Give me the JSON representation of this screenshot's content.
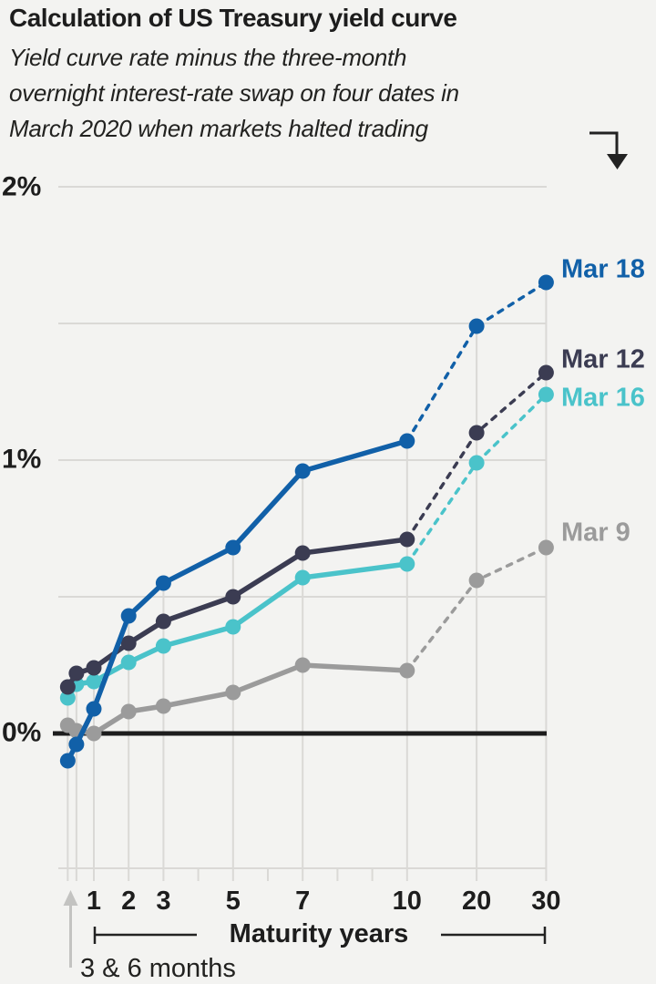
{
  "header": {
    "title": "Calculation of US Treasury yield curve",
    "subtitle_lines": [
      "Yield curve rate minus the three-month",
      "overnight interest-rate swap on four dates in",
      "March 2020 when markets halted trading"
    ]
  },
  "chart_data": {
    "type": "line",
    "title": "Calculation of US Treasury yield curve",
    "subtitle": "Yield curve rate minus the three-month overnight interest-rate swap on four dates in March 2020 when markets halted trading",
    "x_axis": {
      "label": "Maturity years",
      "secondary_label": "3 & 6 months",
      "maturities_years": [
        0.25,
        0.5,
        1,
        2,
        3,
        5,
        7,
        10,
        20,
        30
      ],
      "labeled_ticks": [
        "1",
        "2",
        "3",
        "5",
        "7",
        "10",
        "20",
        "30"
      ],
      "minor_ticks_years": [
        4,
        6,
        8,
        9
      ],
      "note": "linear 0.25-10 years, compressed beyond 10; dotted line style after 10 years"
    },
    "y_axis": {
      "unit": "%",
      "tick_labels_top_down": [
        "2%",
        "1%",
        "0%"
      ],
      "gridlines_pct": [
        0.5,
        1.0,
        1.5,
        2.0
      ],
      "zero_baseline": true,
      "range_pct": [
        -0.25,
        2.05
      ]
    },
    "series": [
      {
        "name": "Mar 18",
        "color": "#1160a8",
        "values_pct": [
          -0.1,
          -0.04,
          0.09,
          0.43,
          0.55,
          0.68,
          0.96,
          1.07,
          1.49,
          1.65
        ]
      },
      {
        "name": "Mar 12",
        "color": "#3b3c52",
        "values_pct": [
          0.17,
          0.22,
          0.24,
          0.33,
          0.41,
          0.5,
          0.66,
          0.71,
          1.1,
          1.32
        ]
      },
      {
        "name": "Mar 16",
        "color": "#4ac3ca",
        "values_pct": [
          0.13,
          0.18,
          0.19,
          0.26,
          0.32,
          0.39,
          0.57,
          0.62,
          0.99,
          1.24
        ]
      },
      {
        "name": "Mar 9",
        "color": "#9b9b9b",
        "values_pct": [
          0.03,
          0.01,
          0.0,
          0.08,
          0.1,
          0.15,
          0.25,
          0.23,
          0.56,
          0.68
        ]
      }
    ],
    "legend_position": "right of 30-year line ends",
    "grid": true,
    "colors": {
      "background": "#f3f3f1",
      "gridline": "#dad9d6",
      "zero_line": "#1d1d1d",
      "annotation_dark": "#222222",
      "annotation_light_gray": "#c3c3c1"
    },
    "annotations": {
      "subtitle_elbow_arrow": "down-pointing elbow arrow after subtitle",
      "months_arrow": "up-pointing arrow from '3 & 6 months' to the short-maturity ticks"
    }
  }
}
